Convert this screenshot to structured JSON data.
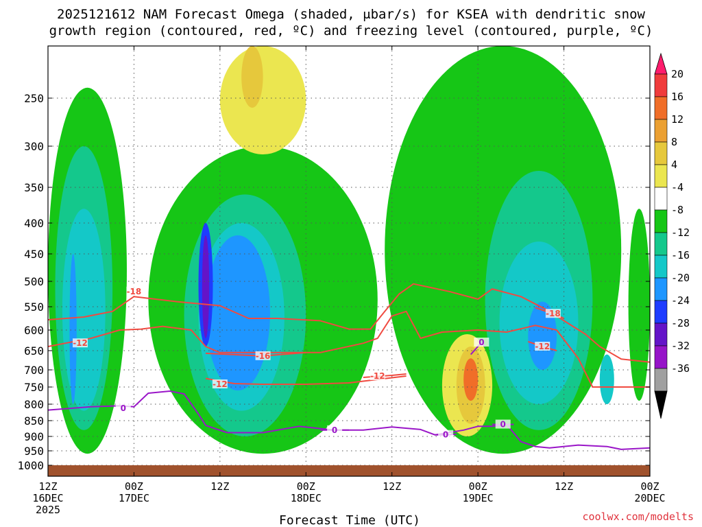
{
  "chart_data": {
    "type": "heatmap",
    "title_line1": "2025121612 NAM Forecast Omega (shaded, μbar/s) for KSEA with dendritic snow",
    "title_line2": "growth region (contoured, red, ºC) and freezing level (contoured, purple, ºC)",
    "xlabel": "Forecast Time (UTC)",
    "ylabel": "",
    "credit": "coolwx.com/modelts",
    "x_hours_range": [
      0,
      84
    ],
    "y_pressure_range": [
      1000,
      200
    ],
    "y_ticks": [
      250,
      300,
      350,
      400,
      450,
      500,
      550,
      600,
      650,
      700,
      750,
      800,
      850,
      900,
      950,
      1000
    ],
    "x_ticks": [
      {
        "hour": 0,
        "line1": "12Z",
        "line2": "16DEC",
        "line3": "2025"
      },
      {
        "hour": 12,
        "line1": "00Z",
        "line2": "17DEC",
        "line3": ""
      },
      {
        "hour": 24,
        "line1": "12Z",
        "line2": "",
        "line3": ""
      },
      {
        "hour": 36,
        "line1": "00Z",
        "line2": "18DEC",
        "line3": ""
      },
      {
        "hour": 48,
        "line1": "12Z",
        "line2": "",
        "line3": ""
      },
      {
        "hour": 60,
        "line1": "00Z",
        "line2": "19DEC",
        "line3": ""
      },
      {
        "hour": 72,
        "line1": "12Z",
        "line2": "",
        "line3": ""
      },
      {
        "hour": 84,
        "line1": "00Z",
        "line2": "20DEC",
        "line3": ""
      }
    ],
    "colorbar": {
      "units": "μbar/s",
      "levels": [
        20,
        16,
        12,
        8,
        4,
        -4,
        -8,
        -12,
        -16,
        -20,
        -24,
        -28,
        -32,
        -36
      ],
      "colors": [
        "#ff1c6c",
        "#f03c3c",
        "#f06e28",
        "#eba032",
        "#e6c83c",
        "#ebe650",
        "#ffffff",
        "#16c616",
        "#14c88c",
        "#14c8c8",
        "#1e96ff",
        "#1e3cff",
        "#6414c8",
        "#9614c8",
        "#a0a0a0",
        "#000000"
      ]
    },
    "omega_regions": [
      {
        "value": -8,
        "t0": 0,
        "t1": 11,
        "p0": 960,
        "p1": 240
      },
      {
        "value": -12,
        "t0": 1,
        "t1": 9,
        "p0": 880,
        "p1": 300
      },
      {
        "value": -16,
        "t0": 2,
        "t1": 8,
        "p0": 820,
        "p1": 380
      },
      {
        "value": -20,
        "t0": 3,
        "t1": 4,
        "p0": 800,
        "p1": 450
      },
      {
        "value": -8,
        "t0": 14,
        "t1": 46,
        "p0": 960,
        "p1": 300
      },
      {
        "value": -12,
        "t0": 19,
        "t1": 36,
        "p0": 900,
        "p1": 360
      },
      {
        "value": -16,
        "t0": 21,
        "t1": 33,
        "p0": 820,
        "p1": 400
      },
      {
        "value": -20,
        "t0": 22,
        "t1": 31,
        "p0": 760,
        "p1": 420
      },
      {
        "value": -24,
        "t0": 21,
        "t1": 23,
        "p0": 640,
        "p1": 400
      },
      {
        "value": -28,
        "t0": 21.5,
        "t1": 22.5,
        "p0": 620,
        "p1": 420
      },
      {
        "value": 4,
        "t0": 24,
        "t1": 36,
        "p0": 310,
        "p1": 200
      },
      {
        "value": 8,
        "t0": 27,
        "t1": 30,
        "p0": 260,
        "p1": 200
      },
      {
        "value": -8,
        "t0": 47,
        "t1": 80,
        "p0": 960,
        "p1": 200
      },
      {
        "value": -12,
        "t0": 61,
        "t1": 76,
        "p0": 880,
        "p1": 330
      },
      {
        "value": -16,
        "t0": 63,
        "t1": 74,
        "p0": 800,
        "p1": 430
      },
      {
        "value": -20,
        "t0": 67,
        "t1": 71,
        "p0": 700,
        "p1": 540
      },
      {
        "value": 4,
        "t0": 55,
        "t1": 62,
        "p0": 900,
        "p1": 610
      },
      {
        "value": 8,
        "t0": 57,
        "t1": 61,
        "p0": 860,
        "p1": 640
      },
      {
        "value": 16,
        "t0": 58,
        "t1": 60,
        "p0": 790,
        "p1": 670
      },
      {
        "value": -16,
        "t0": 77,
        "t1": 79,
        "p0": 800,
        "p1": 660
      },
      {
        "value": -8,
        "t0": 81,
        "t1": 84,
        "p0": 790,
        "p1": 380
      }
    ],
    "contours": [
      {
        "name": "-18C",
        "color": "#f04a40",
        "label": "-18",
        "label_pos": [
          12,
          520
        ],
        "points": [
          [
            0,
            578
          ],
          [
            5,
            572
          ],
          [
            9,
            560
          ],
          [
            12,
            530
          ],
          [
            18,
            540
          ],
          [
            24,
            548
          ],
          [
            28,
            575
          ],
          [
            32,
            575
          ],
          [
            38,
            580
          ],
          [
            42,
            598
          ],
          [
            45,
            598
          ],
          [
            47,
            560
          ],
          [
            49,
            525
          ],
          [
            51,
            505
          ],
          [
            56,
            520
          ],
          [
            60,
            535
          ],
          [
            62,
            515
          ],
          [
            66,
            530
          ],
          [
            70,
            560
          ],
          [
            72,
            580
          ],
          [
            75,
            610
          ],
          [
            77,
            640
          ],
          [
            80,
            672
          ],
          [
            84,
            680
          ]
        ]
      },
      {
        "name": "-12C",
        "color": "#f04a40",
        "label": "-12",
        "label_pos": [
          4.5,
          632
        ],
        "points": [
          [
            0,
            640
          ],
          [
            6,
            620
          ],
          [
            10,
            600
          ],
          [
            13,
            598
          ],
          [
            16,
            592
          ],
          [
            20,
            600
          ],
          [
            22,
            640
          ],
          [
            24,
            655
          ],
          [
            28,
            655
          ],
          [
            32,
            655
          ],
          [
            38,
            655
          ],
          [
            44,
            632
          ],
          [
            46,
            620
          ],
          [
            48,
            570
          ],
          [
            50,
            560
          ],
          [
            52,
            620
          ],
          [
            55,
            605
          ],
          [
            60,
            600
          ],
          [
            64,
            605
          ],
          [
            68,
            590
          ],
          [
            71,
            600
          ],
          [
            74,
            670
          ],
          [
            76,
            750
          ],
          [
            80,
            750
          ],
          [
            84,
            750
          ]
        ]
      },
      {
        "name": "-16C",
        "color": "#f04a40",
        "label": "-16",
        "label_pos": [
          30,
          664
        ],
        "points": [
          [
            22,
            657
          ],
          [
            30,
            664
          ],
          [
            36,
            655
          ]
        ]
      },
      {
        "name": "-12C-low",
        "color": "#f04a40",
        "label": "-12",
        "label_pos": [
          24,
          742
        ],
        "points": [
          [
            22,
            725
          ],
          [
            26,
            740
          ],
          [
            30,
            742
          ],
          [
            36,
            742
          ],
          [
            42,
            738
          ],
          [
            46,
            728
          ],
          [
            50,
            718
          ]
        ]
      },
      {
        "name": "-12C-mid",
        "color": "#f04a40",
        "label": "-12",
        "label_pos": [
          46,
          718
        ],
        "points": [
          [
            44,
            722
          ],
          [
            48,
            716
          ],
          [
            50,
            712
          ]
        ]
      },
      {
        "name": "-18C-b",
        "color": "#f04a40",
        "label": "-18",
        "label_pos": [
          70.5,
          565
        ],
        "points": [
          [
            68,
            552
          ],
          [
            70.5,
            565
          ],
          [
            72,
            575
          ]
        ]
      },
      {
        "name": "-12C-b",
        "color": "#f04a40",
        "label": "-12",
        "label_pos": [
          69,
          640
        ],
        "points": [
          [
            67,
            628
          ],
          [
            69,
            640
          ],
          [
            71,
            650
          ]
        ]
      },
      {
        "name": "0C",
        "color": "#9a16c8",
        "label": "0",
        "label_pos": [
          10.5,
          812
        ],
        "points": [
          [
            0,
            818
          ],
          [
            6,
            808
          ],
          [
            10,
            805
          ],
          [
            12,
            808
          ],
          [
            14,
            768
          ],
          [
            17,
            762
          ],
          [
            19,
            770
          ],
          [
            21,
            830
          ],
          [
            22,
            865
          ],
          [
            25,
            888
          ],
          [
            30,
            888
          ],
          [
            35,
            868
          ],
          [
            40,
            880
          ],
          [
            44,
            880
          ],
          [
            48,
            870
          ],
          [
            52,
            878
          ],
          [
            54,
            895
          ],
          [
            58,
            880
          ],
          [
            60,
            868
          ],
          [
            62,
            868
          ],
          [
            64,
            862
          ],
          [
            66,
            918
          ],
          [
            68,
            935
          ],
          [
            70,
            940
          ],
          [
            74,
            930
          ],
          [
            78,
            935
          ],
          [
            80,
            945
          ],
          [
            84,
            940
          ]
        ]
      },
      {
        "name": "0C-b",
        "color": "#9a16c8",
        "label": "0",
        "label_pos": [
          40,
          880
        ],
        "points": [
          [
            38,
            880
          ],
          [
            40,
            880
          ],
          [
            42,
            880
          ]
        ]
      },
      {
        "name": "0C-c",
        "color": "#9a16c8",
        "label": "0",
        "label_pos": [
          55.5,
          895
        ],
        "points": [
          [
            54,
            895
          ],
          [
            55.5,
            895
          ],
          [
            57,
            893
          ]
        ]
      },
      {
        "name": "0C-d",
        "color": "#9a16c8",
        "label": "0",
        "label_pos": [
          63.5,
          862
        ],
        "points": [
          [
            62,
            862
          ],
          [
            63.5,
            862
          ],
          [
            65,
            862
          ]
        ]
      },
      {
        "name": "0C-e",
        "color": "#9a16c8",
        "label": "0",
        "label_pos": [
          60.5,
          630
        ],
        "points": [
          [
            59,
            660
          ],
          [
            60.5,
            630
          ],
          [
            61,
            640
          ]
        ]
      }
    ],
    "terrain_color": "#a0522d",
    "terrain_pressure": 1000
  }
}
